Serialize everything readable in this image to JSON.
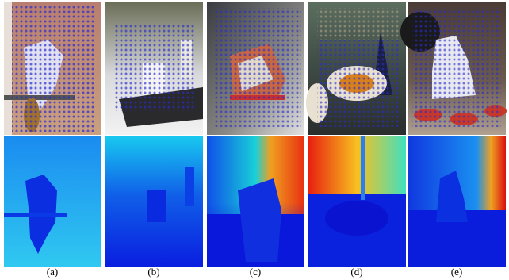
{
  "labels": [
    "(a)",
    "(b)",
    "(c)",
    "(d)",
    "(e)"
  ]
}
